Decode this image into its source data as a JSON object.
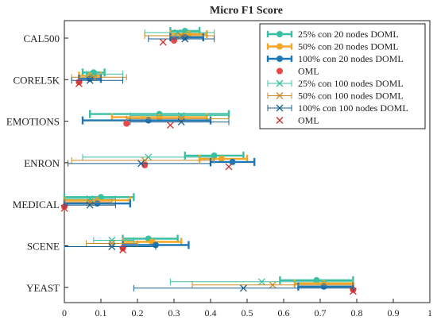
{
  "chart_data": {
    "type": "scatter",
    "title": "Micro F1 Score",
    "xlabel": "",
    "ylabel": "",
    "xlim": [
      0,
      1
    ],
    "xticks": [
      0,
      0.1,
      0.2,
      0.3,
      0.4,
      0.5,
      0.6,
      0.7,
      0.8,
      0.9,
      1
    ],
    "grid": false,
    "legend_position": "top-right",
    "categories": [
      "CAL500",
      "COREL5K",
      "EMOTIONS",
      "ENRON",
      "MEDICAL",
      "SCENE",
      "YEAST"
    ],
    "series": [
      {
        "name": "25% con 20 nodes DOML",
        "color": "#3bbfa3",
        "marker": "dot",
        "line": "thick",
        "points": [
          {
            "mean": 0.33,
            "low": 0.29,
            "high": 0.37
          },
          {
            "mean": 0.08,
            "low": 0.05,
            "high": 0.11
          },
          {
            "mean": 0.26,
            "low": 0.07,
            "high": 0.45
          },
          {
            "mean": 0.41,
            "low": 0.33,
            "high": 0.49
          },
          {
            "mean": 0.1,
            "low": 0.0,
            "high": 0.19
          },
          {
            "mean": 0.23,
            "low": 0.16,
            "high": 0.31
          },
          {
            "mean": 0.69,
            "low": 0.59,
            "high": 0.79
          }
        ]
      },
      {
        "name": "50% con 20 nodes DOML",
        "color": "#f5a623",
        "marker": "dot",
        "line": "thick",
        "points": [
          {
            "mean": 0.34,
            "low": 0.29,
            "high": 0.39
          },
          {
            "mean": 0.07,
            "low": 0.04,
            "high": 0.1
          },
          {
            "mean": 0.26,
            "low": 0.13,
            "high": 0.39
          },
          {
            "mean": 0.43,
            "low": 0.37,
            "high": 0.5
          },
          {
            "mean": 0.09,
            "low": 0.0,
            "high": 0.18
          },
          {
            "mean": 0.24,
            "low": 0.16,
            "high": 0.32
          },
          {
            "mean": 0.71,
            "low": 0.63,
            "high": 0.79
          }
        ]
      },
      {
        "name": "100% con 20 nodes DOML",
        "color": "#1f77b4",
        "marker": "dot",
        "line": "thick",
        "points": [
          {
            "mean": 0.33,
            "low": 0.29,
            "high": 0.38
          },
          {
            "mean": 0.07,
            "low": 0.04,
            "high": 0.1
          },
          {
            "mean": 0.23,
            "low": 0.05,
            "high": 0.4
          },
          {
            "mean": 0.46,
            "low": 0.4,
            "high": 0.52
          },
          {
            "mean": 0.09,
            "low": 0.0,
            "high": 0.18
          },
          {
            "mean": 0.25,
            "low": 0.16,
            "high": 0.34
          },
          {
            "mean": 0.71,
            "low": 0.64,
            "high": 0.79
          }
        ]
      },
      {
        "name": "OML",
        "color": "#e8474c",
        "marker": "dot",
        "line": "none",
        "points": [
          {
            "mean": 0.3
          },
          {
            "mean": 0.04
          },
          {
            "mean": 0.17
          },
          {
            "mean": 0.22
          },
          {
            "mean": 0.0
          },
          {
            "mean": 0.16
          },
          {
            "mean": 0.79
          }
        ]
      },
      {
        "name": "25% con 100 nodes DOML",
        "color": "#3bbfa3",
        "marker": "x",
        "line": "thin",
        "points": [
          {
            "mean": 0.31,
            "low": 0.22,
            "high": 0.41
          },
          {
            "mean": 0.08,
            "low": 0.06,
            "high": 0.16
          },
          {
            "mean": 0.32,
            "low": 0.18,
            "high": 0.45
          },
          {
            "mean": 0.23,
            "low": 0.05,
            "high": 0.41
          },
          {
            "mean": 0.07,
            "low": 0.0,
            "high": 0.14
          },
          {
            "mean": 0.13,
            "low": 0.08,
            "high": 0.19
          },
          {
            "mean": 0.54,
            "low": 0.29,
            "high": 0.79
          }
        ]
      },
      {
        "name": "50% con 100 nodes DOML",
        "color": "#c9892a",
        "marker": "x",
        "line": "thin",
        "points": [
          {
            "mean": 0.32,
            "low": 0.22,
            "high": 0.41
          },
          {
            "mean": 0.08,
            "low": 0.02,
            "high": 0.17
          },
          {
            "mean": 0.32,
            "low": 0.17,
            "high": 0.45
          },
          {
            "mean": 0.22,
            "low": 0.02,
            "high": 0.41
          },
          {
            "mean": 0.07,
            "low": 0.0,
            "high": 0.13
          },
          {
            "mean": 0.13,
            "low": 0.06,
            "high": 0.2
          },
          {
            "mean": 0.57,
            "low": 0.35,
            "high": 0.79
          }
        ]
      },
      {
        "name": "100% con 100 nodes DOML",
        "color": "#1a5e8c",
        "marker": "x",
        "line": "thin",
        "points": [
          {
            "mean": 0.33,
            "low": 0.23,
            "high": 0.41
          },
          {
            "mean": 0.07,
            "low": 0.02,
            "high": 0.16
          },
          {
            "mean": 0.32,
            "low": 0.18,
            "high": 0.45
          },
          {
            "mean": 0.21,
            "low": 0.01,
            "high": 0.4
          },
          {
            "mean": 0.07,
            "low": 0.0,
            "high": 0.14
          },
          {
            "mean": 0.13,
            "low": 0.0,
            "high": 0.25
          },
          {
            "mean": 0.49,
            "low": 0.19,
            "high": 0.79
          }
        ]
      },
      {
        "name": "OML",
        "color": "#c9302c",
        "marker": "x",
        "line": "none",
        "points": [
          {
            "mean": 0.27
          },
          {
            "mean": 0.04
          },
          {
            "mean": 0.29
          },
          {
            "mean": 0.45
          },
          {
            "mean": 0.0
          },
          {
            "mean": 0.16
          },
          {
            "mean": 0.79
          }
        ]
      }
    ]
  }
}
